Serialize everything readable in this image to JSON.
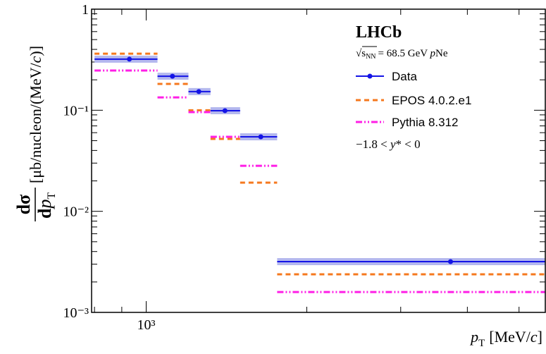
{
  "chart_data": {
    "type": "step",
    "xlabel": [
      "p",
      "T",
      "[MeV/",
      "c",
      "]"
    ],
    "ylabel": [
      "dσ",
      "d",
      "p",
      "T",
      "[μb/nucleon/(MeV/",
      "c",
      ")]"
    ],
    "experiment": "LHCb",
    "energy": [
      "s",
      "NN",
      "= 68.5 GeV ",
      "p",
      "Ne"
    ],
    "range": [
      "−1.8 < ",
      "y",
      "* < 0"
    ],
    "xscale": "log",
    "yscale": "log",
    "xlim": [
      790,
      5600
    ],
    "ylim": [
      0.001,
      1
    ],
    "xticks": [
      {
        "value": 1000,
        "label": "10³"
      }
    ],
    "yticks": [
      {
        "value": 0.001,
        "label": "10⁻³"
      },
      {
        "value": 0.01,
        "label": "10⁻²"
      },
      {
        "value": 0.1,
        "label": "10⁻¹"
      },
      1
    ],
    "bins": [
      800,
      1050,
      1200,
      1320,
      1500,
      1760,
      5600
    ],
    "x": [
      930,
      1120,
      1255,
      1405,
      1640,
      3720
    ],
    "series": [
      {
        "name": "Data",
        "color": "#1414e6",
        "band_color": "#b4b8ee",
        "values": [
          0.32,
          0.217,
          0.153,
          0.099,
          0.0546,
          0.00318
        ]
      },
      {
        "name": "EPOS 4.0.2.e1",
        "color": "#f5781e",
        "values": [
          0.363,
          0.182,
          0.1,
          0.052,
          0.0192,
          0.00238
        ]
      },
      {
        "name": "Pythia 8.312",
        "color": "#ff1ee6",
        "values": [
          0.247,
          0.134,
          0.0958,
          0.0546,
          0.0282,
          0.00159
        ]
      }
    ]
  }
}
